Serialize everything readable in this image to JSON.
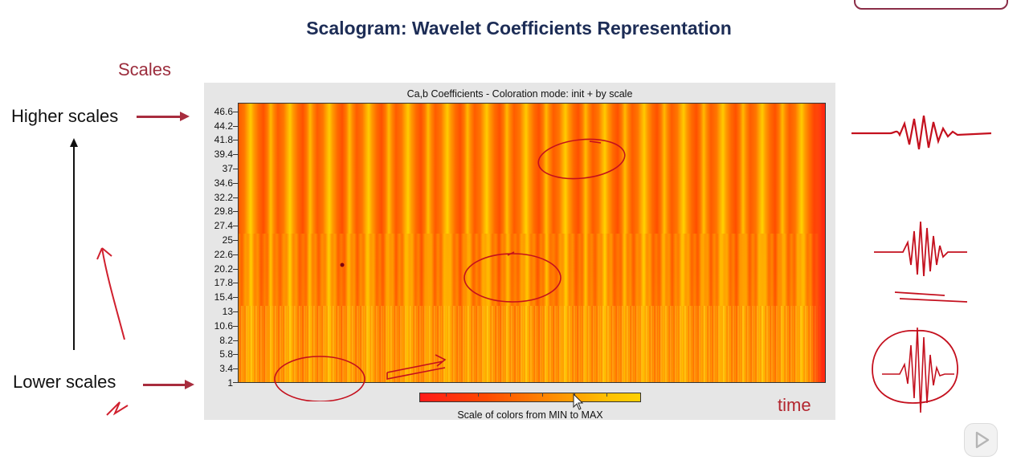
{
  "slide": {
    "title": "Scalogram: Wavelet Coefficients Representation",
    "scales_label": "Scales",
    "higher_scales_label": "Higher scales",
    "lower_scales_label": "Lower scales",
    "time_label": "time"
  },
  "figure": {
    "title": "Ca,b Coefficients - Coloration mode: init + by scale",
    "y_ticks": [
      "46.6",
      "44.2",
      "41.8",
      "39.4",
      "37",
      "34.6",
      "32.2",
      "29.8",
      "27.4",
      "25",
      "22.6",
      "20.2",
      "17.8",
      "15.4",
      "13",
      "10.6",
      "8.2",
      "5.8",
      "3.4",
      "1"
    ],
    "colorbar_label": "Scale of colors from MIN to MAX",
    "colorbar_colors": [
      "#ff1a1a",
      "#ff4a00",
      "#ff8c00",
      "#ffc000",
      "#ffd000"
    ]
  },
  "colors": {
    "title": "#1d2d56",
    "accent": "#a82d3e",
    "annotation": "#d0202e"
  },
  "icons": {
    "video_player": "play-icon"
  }
}
